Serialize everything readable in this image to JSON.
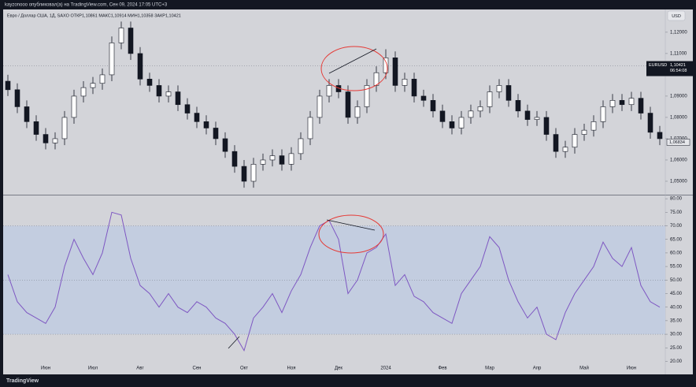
{
  "header": {
    "text": "kayzonooo опубликовал(а) на TradingView.com, Сен 09, 2024 17:05 UTC+3"
  },
  "footer": {
    "logo": "TradingView"
  },
  "chart_data": [
    {
      "type": "candlestick",
      "title": "Евро / Доллар США, 1Д, SAXO  ОТКР1,10861  МАКС1,10914  МИН1,10358  ЗАКР1,10421",
      "currency_button": "USD",
      "symbol_label": "EURUSD",
      "countdown": "06:54:08",
      "last_price": {
        "value": 1.10421,
        "label": "1,10421"
      },
      "marker_price": {
        "value": 1.06834,
        "label": "1,06834"
      },
      "open": [
        1.097,
        1.093,
        1.085,
        1.078,
        1.072,
        1.068,
        1.07,
        1.08,
        1.09,
        1.094,
        1.096,
        1.1,
        1.115,
        1.122,
        1.11,
        1.098,
        1.095,
        1.09,
        1.092,
        1.086,
        1.082,
        1.078,
        1.075,
        1.07,
        1.064,
        1.057,
        1.05,
        1.058,
        1.06,
        1.062,
        1.058,
        1.063,
        1.07,
        1.08,
        1.09,
        1.095,
        1.092,
        1.08,
        1.085,
        1.095,
        1.101,
        1.108,
        1.095,
        1.098,
        1.09,
        1.088,
        1.083,
        1.078,
        1.075,
        1.08,
        1.083,
        1.085,
        1.092,
        1.095,
        1.088,
        1.083,
        1.079,
        1.08,
        1.072,
        1.064,
        1.066,
        1.072,
        1.074,
        1.078,
        1.085,
        1.088,
        1.086,
        1.089,
        1.082,
        1.073
      ],
      "high": [
        1.1,
        1.096,
        1.088,
        1.081,
        1.075,
        1.073,
        1.083,
        1.093,
        1.097,
        1.099,
        1.103,
        1.118,
        1.125,
        1.125,
        1.113,
        1.101,
        1.098,
        1.095,
        1.095,
        1.089,
        1.085,
        1.081,
        1.078,
        1.073,
        1.067,
        1.06,
        1.061,
        1.063,
        1.065,
        1.065,
        1.066,
        1.073,
        1.083,
        1.093,
        1.098,
        1.098,
        1.095,
        1.088,
        1.098,
        1.104,
        1.112,
        1.111,
        1.101,
        1.101,
        1.093,
        1.091,
        1.086,
        1.081,
        1.083,
        1.086,
        1.088,
        1.095,
        1.098,
        1.098,
        1.091,
        1.086,
        1.083,
        1.083,
        1.075,
        1.069,
        1.075,
        1.077,
        1.081,
        1.088,
        1.091,
        1.091,
        1.092,
        1.092,
        1.085,
        1.076
      ],
      "low": [
        1.09,
        1.082,
        1.075,
        1.069,
        1.065,
        1.065,
        1.067,
        1.077,
        1.087,
        1.091,
        1.093,
        1.097,
        1.112,
        1.107,
        1.095,
        1.092,
        1.087,
        1.087,
        1.083,
        1.079,
        1.075,
        1.072,
        1.067,
        1.061,
        1.054,
        1.047,
        1.047,
        1.055,
        1.057,
        1.055,
        1.055,
        1.06,
        1.067,
        1.077,
        1.087,
        1.089,
        1.077,
        1.077,
        1.082,
        1.092,
        1.098,
        1.092,
        1.092,
        1.087,
        1.085,
        1.08,
        1.075,
        1.072,
        1.072,
        1.077,
        1.08,
        1.082,
        1.089,
        1.085,
        1.08,
        1.076,
        1.076,
        1.069,
        1.061,
        1.061,
        1.063,
        1.069,
        1.071,
        1.075,
        1.082,
        1.083,
        1.083,
        1.079,
        1.07,
        1.067
      ],
      "close": [
        1.093,
        1.085,
        1.078,
        1.072,
        1.068,
        1.07,
        1.08,
        1.09,
        1.094,
        1.096,
        1.1,
        1.115,
        1.122,
        1.11,
        1.098,
        1.095,
        1.09,
        1.092,
        1.086,
        1.082,
        1.078,
        1.075,
        1.07,
        1.064,
        1.057,
        1.05,
        1.058,
        1.06,
        1.062,
        1.058,
        1.063,
        1.07,
        1.08,
        1.09,
        1.095,
        1.092,
        1.08,
        1.085,
        1.095,
        1.101,
        1.108,
        1.095,
        1.098,
        1.09,
        1.088,
        1.083,
        1.078,
        1.075,
        1.08,
        1.083,
        1.085,
        1.092,
        1.095,
        1.088,
        1.083,
        1.079,
        1.08,
        1.072,
        1.064,
        1.066,
        1.072,
        1.074,
        1.078,
        1.085,
        1.088,
        1.086,
        1.089,
        1.082,
        1.073,
        1.07
      ],
      "up_color": "#ffffff",
      "down_color": "#131722",
      "ylim": [
        1.0437,
        1.1307
      ],
      "yticks": [
        {
          "value": 1.05,
          "label": "1,05000"
        },
        {
          "value": 1.06,
          "label": "1,06000"
        },
        {
          "value": 1.07,
          "label": "1,07000"
        },
        {
          "value": 1.08,
          "label": "1,08000"
        },
        {
          "value": 1.09,
          "label": "1,09000"
        },
        {
          "value": 1.11,
          "label": "1,11000"
        },
        {
          "value": 1.12,
          "label": "1,12000"
        }
      ]
    },
    {
      "type": "line",
      "categories": [
        null,
        null,
        null,
        null,
        "Июн",
        null,
        null,
        null,
        null,
        "Июл",
        null,
        null,
        null,
        null,
        "Авг",
        null,
        null,
        null,
        null,
        null,
        "Сен",
        null,
        null,
        null,
        null,
        "Окт",
        null,
        null,
        null,
        null,
        "Ноя",
        null,
        null,
        null,
        null,
        "Дек",
        null,
        null,
        null,
        null,
        "2024",
        null,
        null,
        null,
        null,
        null,
        "Фев",
        null,
        null,
        null,
        null,
        "Мар",
        null,
        null,
        null,
        null,
        "Апр",
        null,
        null,
        null,
        null,
        "Май",
        null,
        null,
        null,
        null,
        "Июн",
        null,
        null,
        null
      ],
      "values": [
        52,
        42,
        38,
        36,
        34,
        40,
        55,
        65,
        58,
        52,
        60,
        75,
        74,
        58,
        48,
        45,
        40,
        45,
        40,
        38,
        42,
        40,
        36,
        34,
        30,
        24,
        36,
        40,
        45,
        38,
        46,
        52,
        62,
        70,
        72,
        65,
        45,
        50,
        60,
        62,
        67,
        48,
        52,
        44,
        42,
        38,
        36,
        34,
        45,
        50,
        55,
        66,
        62,
        50,
        42,
        36,
        40,
        30,
        28,
        38,
        45,
        50,
        55,
        64,
        58,
        55,
        62,
        48,
        42,
        40
      ],
      "color": "#7e57c2",
      "band": [
        30,
        70
      ],
      "midline": 50,
      "band_color": "#c3cde0",
      "ylim": [
        18.1,
        81.2
      ],
      "yticks": [
        {
          "value": 20,
          "label": "20.00"
        },
        {
          "value": 25,
          "label": "25.00"
        },
        {
          "value": 30,
          "label": "30.00"
        },
        {
          "value": 35,
          "label": "35.00"
        },
        {
          "value": 40,
          "label": "40.00"
        },
        {
          "value": 45,
          "label": "45.00"
        },
        {
          "value": 50,
          "label": "50.00"
        },
        {
          "value": 55,
          "label": "55.00"
        },
        {
          "value": 60,
          "label": "60.00"
        },
        {
          "value": 65,
          "label": "65.00"
        },
        {
          "value": 70,
          "label": "70.00"
        },
        {
          "value": 75,
          "label": "75.00"
        },
        {
          "value": 80,
          "label": "80.00"
        }
      ]
    }
  ]
}
